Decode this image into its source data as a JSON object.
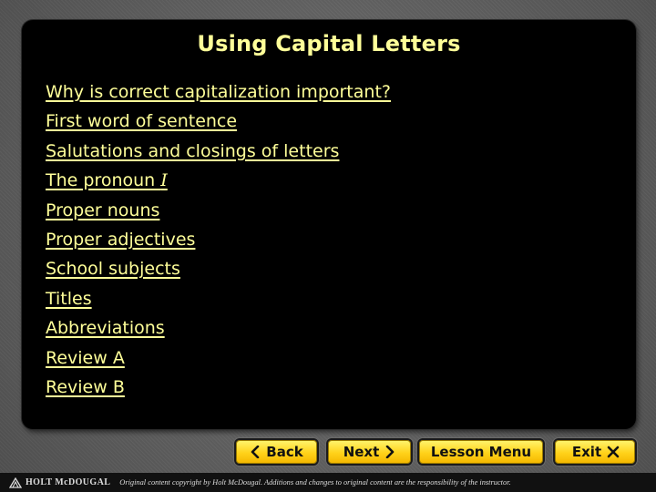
{
  "slide": {
    "title": "Using Capital Letters",
    "topics": [
      {
        "label": "Why is correct capitalization important?"
      },
      {
        "label": "First word of sentence"
      },
      {
        "label": "Salutations and closings of letters"
      },
      {
        "label": "The pronoun ",
        "italic_suffix": "I"
      },
      {
        "label": "Proper nouns"
      },
      {
        "label": "Proper adjectives"
      },
      {
        "label": "School subjects"
      },
      {
        "label": "Titles"
      },
      {
        "label": "Abbreviations"
      },
      {
        "label": "Review A"
      },
      {
        "label": "Review B"
      }
    ]
  },
  "nav": {
    "back_label": "Back",
    "back_icon": "chevron-left-icon",
    "next_label": "Next",
    "next_icon": "chevron-right-icon",
    "menu_label": "Lesson Menu",
    "exit_label": "Exit",
    "exit_icon": "close-icon"
  },
  "footer": {
    "brand": "HOLT McDOUGAL",
    "copyright": "Original content copyright by Holt McDougal. Additions and changes to original content are the responsibility of the instructor."
  },
  "colors": {
    "link": "#ffff99",
    "panel": "#000000",
    "button": "#ffd21a",
    "background": "#5e5e5e"
  }
}
